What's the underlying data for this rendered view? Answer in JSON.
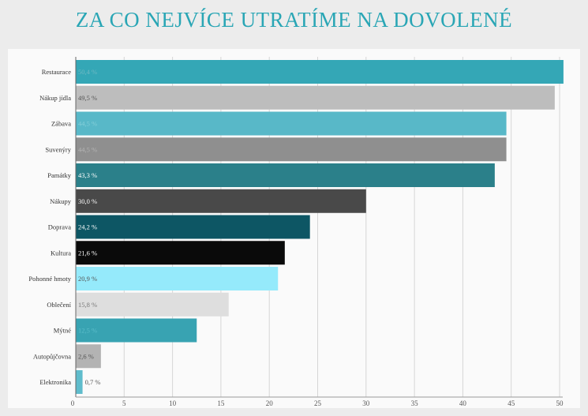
{
  "title": "ZA CO NEJVÍCE UTRATÍME NA DOVOLENÉ",
  "chart_data": {
    "type": "bar",
    "orientation": "horizontal",
    "categories": [
      "Restaurace",
      "Nákup jídla",
      "Zábava",
      "Suvenýry",
      "Památky",
      "Nákupy",
      "Doprava",
      "Kultura",
      "Pohonné hmoty",
      "Oblečení",
      "Mýtné",
      "Autopůjčovna",
      "Elektronika"
    ],
    "values": [
      50.4,
      49.5,
      44.5,
      44.5,
      43.3,
      30.0,
      24.2,
      21.6,
      20.9,
      15.8,
      12.5,
      2.6,
      0.7
    ],
    "data_labels": [
      "50,4 %",
      "49,5 %",
      "44,5 %",
      "44,5 %",
      "43,3 %",
      "30,0 %",
      "24,2 %",
      "21,6 %",
      "20,9 %",
      "15,8 %",
      "12,5 %",
      "2,6 %",
      "0,7 %"
    ],
    "colors": [
      "#34a7b6",
      "#bdbdbd",
      "#58b8c8",
      "#8f8f8f",
      "#2b808a",
      "#494949",
      "#0d5664",
      "#0a0a0a",
      "#95eafb",
      "#dedede",
      "#38a3b2",
      "#b3b3b3",
      "#5fbccc"
    ],
    "label_colors": [
      "#6fb9c4",
      "#555555",
      "#86cfd9",
      "#b5b5b5",
      "#ffffff",
      "#ffffff",
      "#ffffff",
      "#ffffff",
      "#555555",
      "#777777",
      "#5dbecb",
      "#555555",
      "#555555"
    ],
    "x_ticks": [
      "0",
      "5",
      "10",
      "15",
      "20",
      "25",
      "30",
      "35",
      "40",
      "45",
      "50"
    ],
    "xlim": [
      0,
      50
    ],
    "grid": true,
    "legend": "none",
    "xlabel": "",
    "ylabel": ""
  }
}
